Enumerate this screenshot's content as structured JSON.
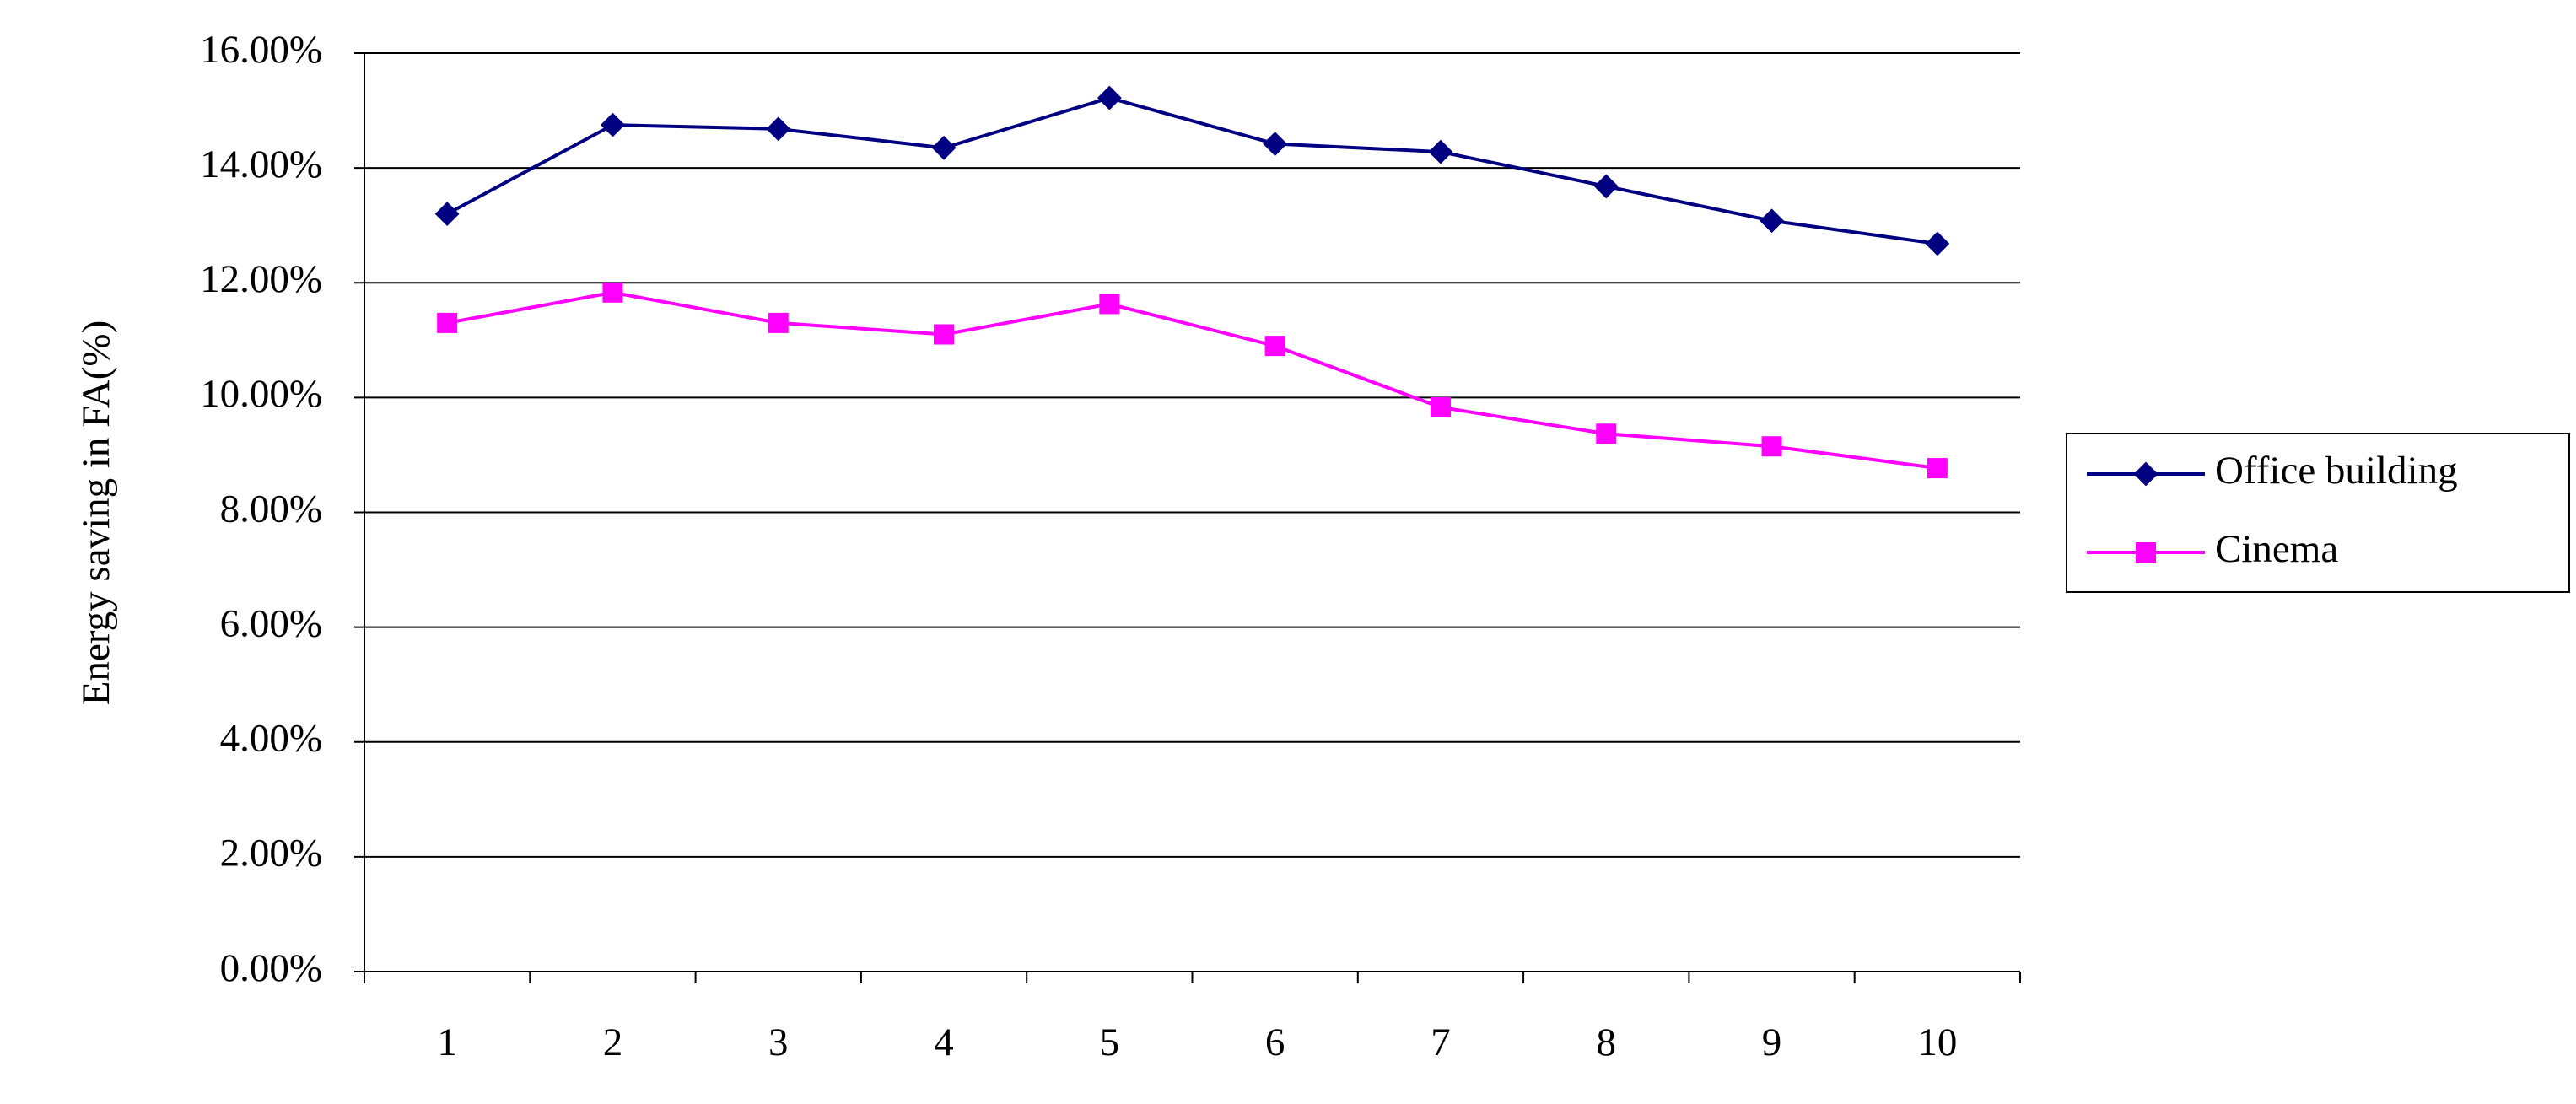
{
  "chart_data": {
    "type": "line",
    "y_label": "Energy saving in FA(%)",
    "categories": [
      "1",
      "2",
      "3",
      "4",
      "5",
      "6",
      "7",
      "8",
      "9",
      "10"
    ],
    "series": [
      {
        "name": "Office building",
        "color": "#000080",
        "marker": "diamond",
        "values": [
          13.2,
          14.75,
          14.68,
          14.35,
          15.22,
          14.42,
          14.28,
          13.68,
          13.08,
          12.68
        ]
      },
      {
        "name": "Cinema",
        "color": "#ff00ff",
        "marker": "square",
        "values": [
          11.3,
          11.83,
          11.3,
          11.1,
          11.63,
          10.9,
          9.83,
          9.37,
          9.15,
          8.77
        ]
      }
    ],
    "ylim": [
      0,
      16
    ],
    "yticks": [
      {
        "value": 0,
        "label": "0.00%"
      },
      {
        "value": 2,
        "label": "2.00%"
      },
      {
        "value": 4,
        "label": "4.00%"
      },
      {
        "value": 6,
        "label": "6.00%"
      },
      {
        "value": 8,
        "label": "8.00%"
      },
      {
        "value": 10,
        "label": "10.00%"
      },
      {
        "value": 12,
        "label": "12.00%"
      },
      {
        "value": 14,
        "label": "14.00%"
      },
      {
        "value": 16,
        "label": "16.00%"
      }
    ],
    "grid": true,
    "legend": "right"
  }
}
